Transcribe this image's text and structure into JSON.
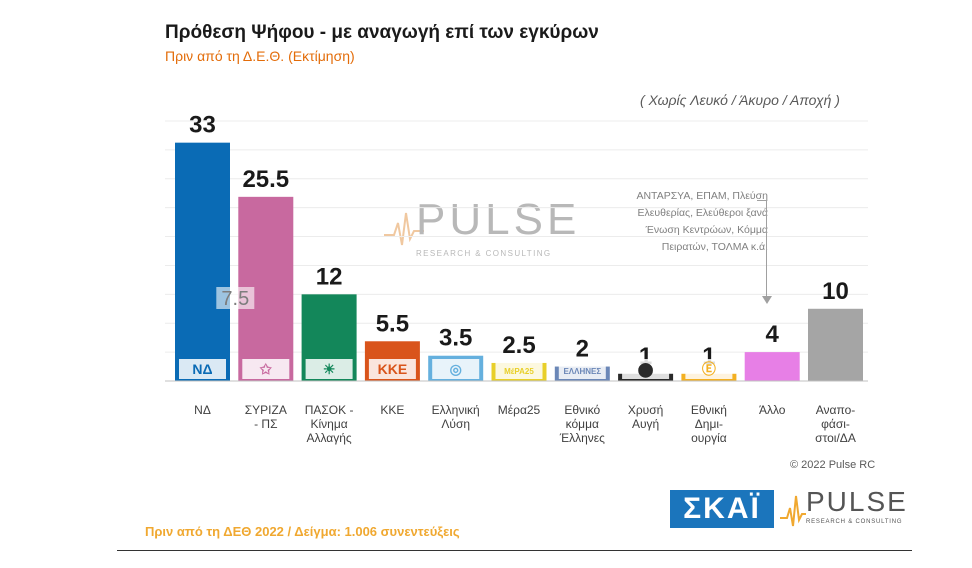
{
  "header": {
    "title": "Πρόθεση Ψήφου - με αναγωγή επί των εγκύρων",
    "subtitle": "Πριν από τη Δ.Ε.Θ.   (Εκτίμηση)",
    "note": "( Χωρίς Λευκό / Άκυρο / Αποχή )"
  },
  "watermark": {
    "text": "PULSE",
    "sub": "RESEARCH & CONSULTING"
  },
  "annotation": {
    "lines": [
      "ΑΝΤΑΡΣΥΑ, ΕΠΑΜ, Πλεύση",
      "Ελευθερίας, Ελεύθεροι ξανά",
      "Ένωση Κεντρώων, Κόμμα",
      "Πειρατών, ΤΟΛΜΑ   κ.ά."
    ]
  },
  "chart_data": {
    "type": "bar",
    "title": "Πρόθεση Ψήφου - με αναγωγή επί των εγκύρων",
    "subtitle": "Πριν από τη Δ.Ε.Θ.   (Εκτίμηση)",
    "ylim": [
      0,
      36
    ],
    "grid": true,
    "categories": [
      [
        "ΝΔ"
      ],
      [
        "ΣΥΡΙΖΑ",
        "- ΠΣ"
      ],
      [
        "ΠΑΣΟΚ -",
        "Κίνημα",
        "Αλλαγής"
      ],
      [
        "ΚΚΕ"
      ],
      [
        "Ελληνική",
        "Λύση"
      ],
      [
        "Μέρα25"
      ],
      [
        "Εθνικό",
        "κόμμα",
        "Έλληνες"
      ],
      [
        "Χρυσή",
        "Αυγή"
      ],
      [
        "Εθνική",
        "Δημι-",
        "ουργία"
      ],
      [
        "Άλλο"
      ],
      [
        "Αναπο-",
        "φάσι-",
        "στοι/ΔΑ"
      ]
    ],
    "values": [
      33,
      25.5,
      12,
      5.5,
      3.5,
      2.5,
      2,
      1,
      1,
      4,
      10
    ],
    "value_labels": [
      "33",
      "25.5",
      "12",
      "5.5",
      "3.5",
      "2.5",
      "2",
      "1",
      "1",
      "4",
      "10"
    ],
    "colors": [
      "#0a6bb5",
      "#c8699f",
      "#13875a",
      "#d9541b",
      "#65b0de",
      "#e8cf29",
      "#6b87b7",
      "#2a2a2a",
      "#f3b021",
      "#e77fe6",
      "#a5a5a5"
    ],
    "logo_texts": [
      "ΝΔ",
      "✩",
      "☀",
      "ΚΚΕ",
      "◎",
      "ΜέΡΑ25",
      "ΕΛΛΗΝΕΣ",
      "⬤",
      "Ⓔ",
      "",
      ""
    ],
    "logo_icons": [
      "nd-logo",
      "syriza-logo",
      "pasok-logo",
      "kke-logo",
      "elliniki-lysi-logo",
      "mera25-logo",
      "ellines-logo",
      "chrysi-avgi-logo",
      "ethniki-dimiourgia-logo",
      "",
      ""
    ],
    "inner_label": "7.5"
  },
  "footer": {
    "text": "Πριν από τη ΔΕΘ  2022  /  Δείγμα:  1.006 συνεντεύξεις",
    "copyright": "© 2022 Pulse RC"
  },
  "logos": {
    "skai": "ΣΚΑΪ",
    "pulse": "PULSE",
    "pulse_sub": "RESEARCH & CONSULTING"
  }
}
